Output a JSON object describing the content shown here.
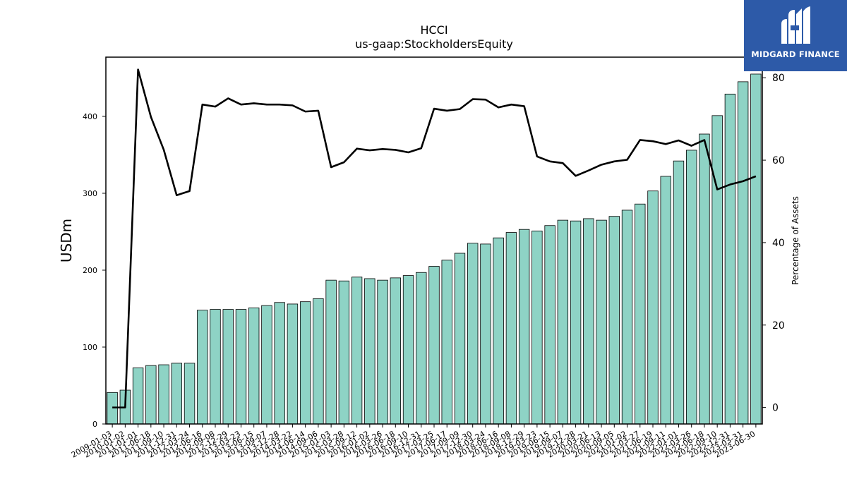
{
  "chart_data": {
    "type": "bar",
    "title": "HCCI",
    "subtitle": "us-gaap:StockholdersEquity",
    "ylabel": "USDm",
    "y2label": "Percentage of Assets",
    "ylim": [
      0,
      477
    ],
    "y2lim": [
      -4,
      85
    ],
    "yticks": [
      0,
      100,
      200,
      300,
      400
    ],
    "y2ticks": [
      0,
      20,
      40,
      60,
      80
    ],
    "bar_color": "#8ed3c5",
    "line_color": "#000000",
    "categories": [
      "2009-01-03",
      "2010-01-02",
      "2011-01-01",
      "2011-06-18",
      "2011-09-10",
      "2011-12-31",
      "2012-03-24",
      "2012-06-16",
      "2012-09-08",
      "2012-12-29",
      "2013-03-23",
      "2013-06-15",
      "2013-09-07",
      "2013-12-28",
      "2014-03-22",
      "2014-06-14",
      "2014-09-06",
      "2015-01-03",
      "2015-03-28",
      "2015-09-12",
      "2016-01-02",
      "2016-03-26",
      "2016-06-18",
      "2016-09-10",
      "2016-12-31",
      "2017-03-25",
      "2017-06-17",
      "2017-09-09",
      "2017-12-30",
      "2018-03-24",
      "2018-06-16",
      "2018-09-08",
      "2018-12-29",
      "2019-03-23",
      "2019-06-15",
      "2019-09-07",
      "2019-12-28",
      "2020-03-21",
      "2020-06-13",
      "2020-09-05",
      "2021-01-02",
      "2021-03-27",
      "2021-06-19",
      "2021-09-11",
      "2022-01-01",
      "2022-03-26",
      "2022-06-18",
      "2022-09-10",
      "2022-12-31",
      "2023-03-31",
      "2023-06-30"
    ],
    "series": [
      {
        "axis": "left",
        "values": [
          41,
          44,
          73,
          76,
          77,
          79,
          79,
          148,
          149,
          149,
          149,
          151,
          154,
          158,
          156,
          159,
          163,
          187,
          186,
          191,
          189,
          187,
          190,
          193,
          197,
          205,
          213,
          222,
          235,
          234,
          242,
          249,
          253,
          251,
          258,
          265,
          264,
          267,
          265,
          270,
          278,
          286,
          303,
          322,
          342,
          356,
          377,
          401,
          429,
          445,
          455
        ]
      },
      {
        "axis": "right",
        "values": [
          0,
          0,
          82,
          70.5,
          62.5,
          51.5,
          52.5,
          73.5,
          73,
          75,
          73.5,
          73.8,
          73.5,
          73.5,
          73.3,
          71.8,
          72,
          58.3,
          59.5,
          62.8,
          62.4,
          62.7,
          62.5,
          61.9,
          62.9,
          72.5,
          72,
          72.4,
          74.8,
          74.7,
          72.8,
          73.5,
          73.1,
          60.9,
          59.7,
          59.3,
          56.2,
          57.5,
          58.9,
          59.7,
          60.1,
          64.9,
          64.6,
          63.9,
          64.8,
          63.5,
          64.9,
          52.9,
          54.1,
          54.9,
          56.1
        ]
      }
    ]
  },
  "logo": {
    "text": "MIDGARD FINANCE",
    "background": "#2d5aa8",
    "icon": "midgard-m-logo-icon"
  }
}
